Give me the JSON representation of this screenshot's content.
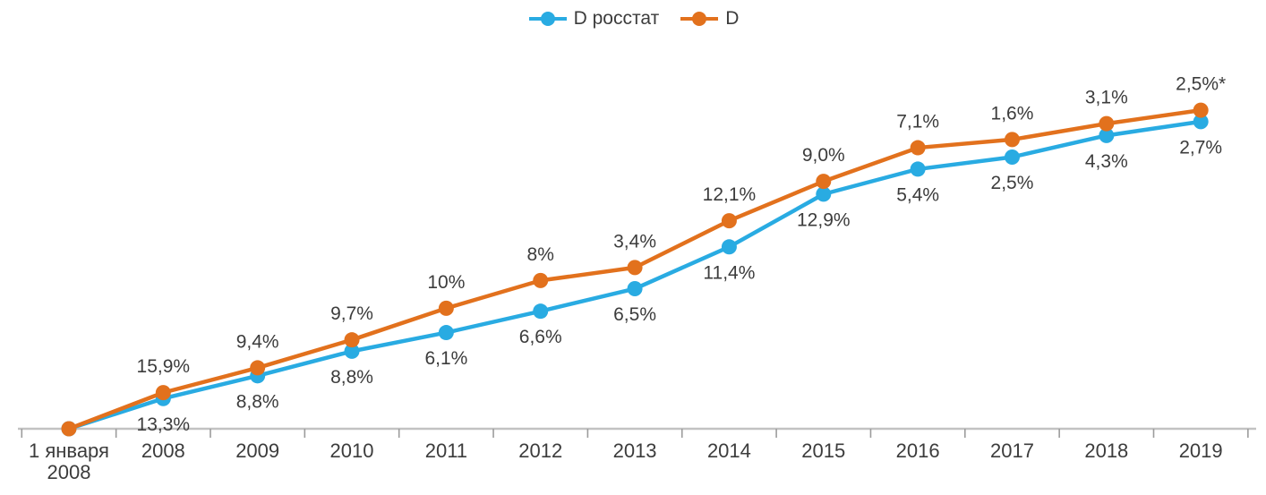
{
  "chart_data": {
    "type": "line",
    "categories": [
      "1 января\n2008",
      "2008",
      "2009",
      "2010",
      "2011",
      "2012",
      "2013",
      "2014",
      "2015",
      "2016",
      "2017",
      "2018",
      "2019"
    ],
    "series": [
      {
        "name": "D росстат",
        "color": "#29ABE2",
        "values": [
          0,
          13.3,
          23.3,
          34.1,
          42.3,
          51.7,
          61.6,
          80.0,
          103.2,
          114.2,
          119.5,
          129.0,
          135.1
        ],
        "point_labels": [
          "",
          "13,3%",
          "8,8%",
          "8,8%",
          "6,1%",
          "6,6%",
          "6,5%",
          "11,4%",
          "12,9%",
          "5,4%",
          "2,5%",
          "4,3%",
          "2,7%"
        ],
        "label_position": "below"
      },
      {
        "name": "D",
        "color": "#E2711D",
        "values": [
          0,
          15.9,
          26.8,
          39.1,
          53.0,
          65.2,
          70.9,
          91.5,
          108.8,
          123.6,
          127.2,
          134.2,
          140.1
        ],
        "point_labels": [
          "",
          "15,9%",
          "9,4%",
          "9,7%",
          "10%",
          "8%",
          "3,4%",
          "12,1%",
          "9,0%",
          "7,1%",
          "1,6%",
          "3,1%",
          "2,5%*"
        ],
        "label_position": "above"
      }
    ],
    "point_labels_are": "annual percent change; plotted values are cumulative index estimated from marker positions",
    "ylim": [
      0,
      150
    ],
    "y_axis_visible": false,
    "grid": false,
    "legend_position": "top-center",
    "colors": {
      "text": "#3C3C3C",
      "axis_line": "#C2C2C2",
      "tick": "#9C9C9C"
    }
  }
}
